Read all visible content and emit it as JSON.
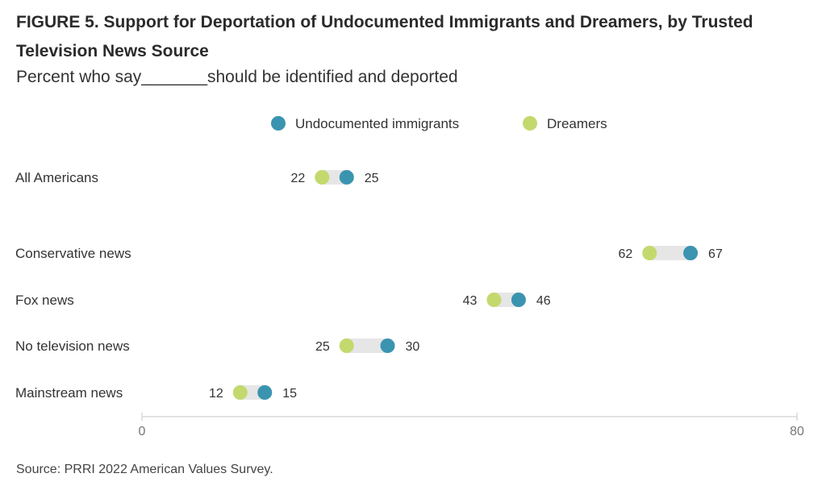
{
  "figure": {
    "title": "FIGURE 5.  Support for Deportation of Undocumented Immigrants and Dreamers, by Trusted Television News Source",
    "subtitle": "Percent who say_______should be identified and deported",
    "source": "Source: PRRI 2022 American Values Survey."
  },
  "chart_data": {
    "type": "dumbbell",
    "categories": [
      "All Americans",
      "Conservative news",
      "Fox news",
      "No television news",
      "Mainstream news"
    ],
    "series": [
      {
        "name": "Undocumented immigrants",
        "color": "#3a94b0",
        "values": [
          25,
          67,
          46,
          30,
          15
        ]
      },
      {
        "name": "Dreamers",
        "color": "#c3d96e",
        "values": [
          22,
          62,
          43,
          25,
          12
        ]
      }
    ],
    "xlim": [
      0,
      80
    ],
    "x_ticks": [
      "0",
      "80"
    ],
    "legend_position": "top",
    "grid": false,
    "connector_color": "#e6e6e6"
  }
}
